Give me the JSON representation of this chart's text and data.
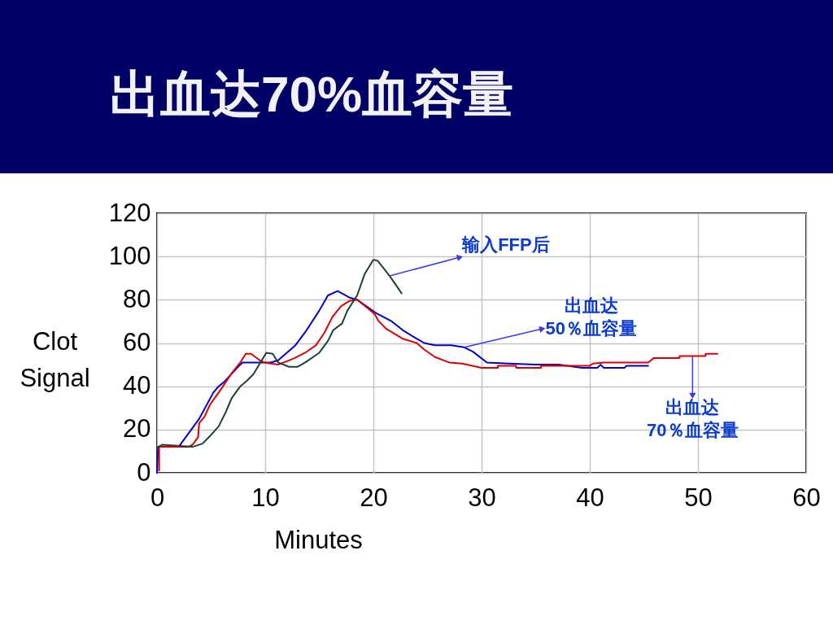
{
  "chart_data": {
    "type": "line",
    "title": "出血达70%血容量",
    "xlabel": "Minutes",
    "ylabel": "Clot Signal",
    "xlim": [
      0,
      60
    ],
    "ylim": [
      0,
      120
    ],
    "xticks": [
      0,
      10,
      20,
      30,
      40,
      50,
      60
    ],
    "yticks": [
      0,
      20,
      40,
      60,
      80,
      100,
      120
    ],
    "grid": true,
    "line_style": "solid",
    "series": [
      {
        "color": "#0000cc",
        "x": [
          0,
          0.1,
          2.0,
          3.9,
          5.2,
          5.7,
          6.2,
          7.4,
          7.9,
          9.5,
          10.5,
          11.2,
          12.8,
          13.7,
          15.0,
          15.8,
          16.7,
          17.8,
          18.5,
          20.2,
          21.7,
          22.7,
          24.0,
          24.7,
          25.7,
          27.2,
          28.4,
          29.2,
          30.5,
          32.5,
          35.0,
          37.1,
          39.3,
          40.7,
          41.0,
          41.3,
          43.2,
          43.4,
          45.4
        ],
        "values": [
          0,
          12,
          12,
          25,
          37,
          40,
          42,
          48.5,
          51,
          51,
          51,
          52,
          59,
          65,
          75,
          82,
          84,
          81,
          80,
          74,
          70,
          66,
          62,
          60,
          59,
          59,
          58,
          56,
          51,
          50.5,
          50,
          50,
          48.5,
          48.5,
          50,
          48.5,
          48.5,
          49.5,
          49.5
        ]
      },
      {
        "color": "#e00000",
        "x": [
          0.2,
          0.2,
          2.9,
          3.3,
          3.8,
          3.9,
          4.4,
          4.9,
          5.9,
          6.9,
          7.7,
          8.2,
          8.7,
          9.5,
          9.9,
          11.2,
          12.7,
          13.7,
          14.7,
          15.5,
          16.2,
          17.0,
          17.8,
          18.5,
          19.5,
          20.1,
          20.5,
          21.2,
          22.7,
          24.0,
          24.7,
          25.7,
          27.0,
          28.2,
          30.0,
          31.5,
          31.5,
          33.2,
          33.2,
          35.5,
          35.5,
          40.0,
          40.3,
          41.3,
          45.4,
          45.9,
          48.3,
          48.3,
          50.7,
          50.7,
          51.8
        ],
        "values": [
          1,
          12,
          12,
          13,
          16.5,
          23,
          26,
          31.5,
          38.5,
          46,
          51,
          55,
          55,
          52,
          51,
          50,
          53,
          55.5,
          59,
          65,
          72,
          77,
          79.5,
          80,
          76,
          73.5,
          70,
          66.5,
          62,
          60,
          57,
          53.5,
          51,
          50.5,
          48.5,
          48.5,
          49.5,
          49.5,
          48.5,
          48.5,
          49.5,
          49.5,
          50.5,
          51,
          51,
          53,
          53,
          54,
          54,
          55,
          55
        ]
      },
      {
        "color": "#1a4236",
        "x": [
          0.1,
          0.5,
          3.3,
          4.2,
          4.9,
          5.7,
          6.4,
          6.9,
          7.7,
          8.3,
          8.9,
          9.5,
          10.1,
          10.7,
          11.2,
          12.2,
          13.0,
          13.7,
          15.0,
          15.8,
          16.3,
          17.1,
          17.6,
          18.5,
          19.2,
          20.0,
          20.4,
          21.5,
          22.2,
          22.6
        ],
        "values": [
          12,
          13,
          12,
          13.5,
          17,
          21.5,
          28.5,
          34.5,
          40,
          42.5,
          45.5,
          50.5,
          55.5,
          55,
          51,
          49,
          49,
          51,
          55.5,
          61,
          66,
          69,
          75,
          82,
          92,
          98.5,
          98,
          91,
          86,
          83
        ]
      }
    ],
    "annotations": [
      {
        "text": "输入FFP后",
        "x": 21.5,
        "y": 91
      },
      {
        "text": "出血达\n50％血容量",
        "x": 28.4,
        "y": 58
      },
      {
        "text": "出血达\n70％血容量",
        "x": 49.5,
        "y": 54
      }
    ]
  }
}
